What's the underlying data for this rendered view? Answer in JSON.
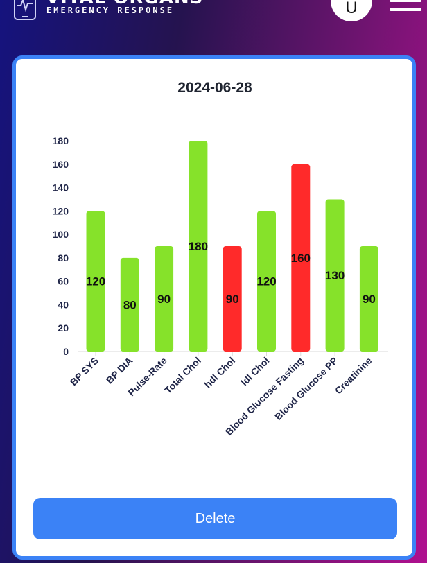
{
  "app": {
    "brand_title": "VITAL ORGANS",
    "brand_subtitle": "EMERGENCY RESPONSE",
    "avatar_initial": "U"
  },
  "chart_data": {
    "type": "bar",
    "title": "2024-06-28",
    "categories": [
      "BP SYS",
      "BP DIA",
      "Pulse-Rate",
      "Total Chol",
      "hdl Chol",
      "ldl Chol",
      "Blood Glucose Fasting",
      "Blood Glucose PP",
      "Creatinine"
    ],
    "values": [
      120,
      80,
      90,
      180,
      90,
      120,
      160,
      130,
      90
    ],
    "status": [
      "normal",
      "normal",
      "normal",
      "normal",
      "abnormal",
      "normal",
      "abnormal",
      "normal",
      "normal"
    ],
    "colors": {
      "normal": "#86e22a",
      "abnormal": "#ff2a2a"
    },
    "yticks": [
      0,
      20,
      40,
      60,
      80,
      100,
      120,
      140,
      160,
      180
    ],
    "ylim": [
      0,
      180
    ],
    "data_labels": true,
    "grid": false,
    "legend": false
  },
  "actions": {
    "delete_label": "Delete"
  },
  "colors": {
    "accent": "#3b82f6",
    "card_border": "#3b82f6"
  }
}
